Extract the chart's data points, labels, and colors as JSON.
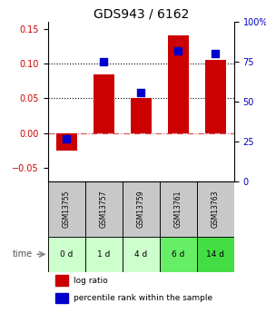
{
  "title": "GDS943 / 6162",
  "samples": [
    "GSM13755",
    "GSM13757",
    "GSM13759",
    "GSM13761",
    "GSM13763"
  ],
  "time_labels": [
    "0 d",
    "1 d",
    "4 d",
    "6 d",
    "14 d"
  ],
  "log_ratio": [
    -0.025,
    0.085,
    0.05,
    0.14,
    0.105
  ],
  "percentile_rank": [
    0.27,
    0.75,
    0.56,
    0.82,
    0.8
  ],
  "bar_color": "#cc0000",
  "dot_color": "#0000cc",
  "left_ylim": [
    -0.07,
    0.16
  ],
  "right_ylim": [
    0,
    1.0
  ],
  "left_yticks": [
    -0.05,
    0,
    0.05,
    0.1,
    0.15
  ],
  "right_yticks": [
    0,
    0.25,
    0.5,
    0.75,
    1.0
  ],
  "right_yticklabels": [
    "0",
    "25",
    "50",
    "75",
    "100%"
  ],
  "hline_values": [
    0.05,
    0.1
  ],
  "gsm_bg": "#c8c8c8",
  "time_bg_colors": [
    "#ccffcc",
    "#ccffcc",
    "#ccffcc",
    "#66ee66",
    "#44dd44"
  ],
  "legend_log_ratio": "log ratio",
  "legend_percentile": "percentile rank within the sample",
  "time_arrow_label": "time"
}
